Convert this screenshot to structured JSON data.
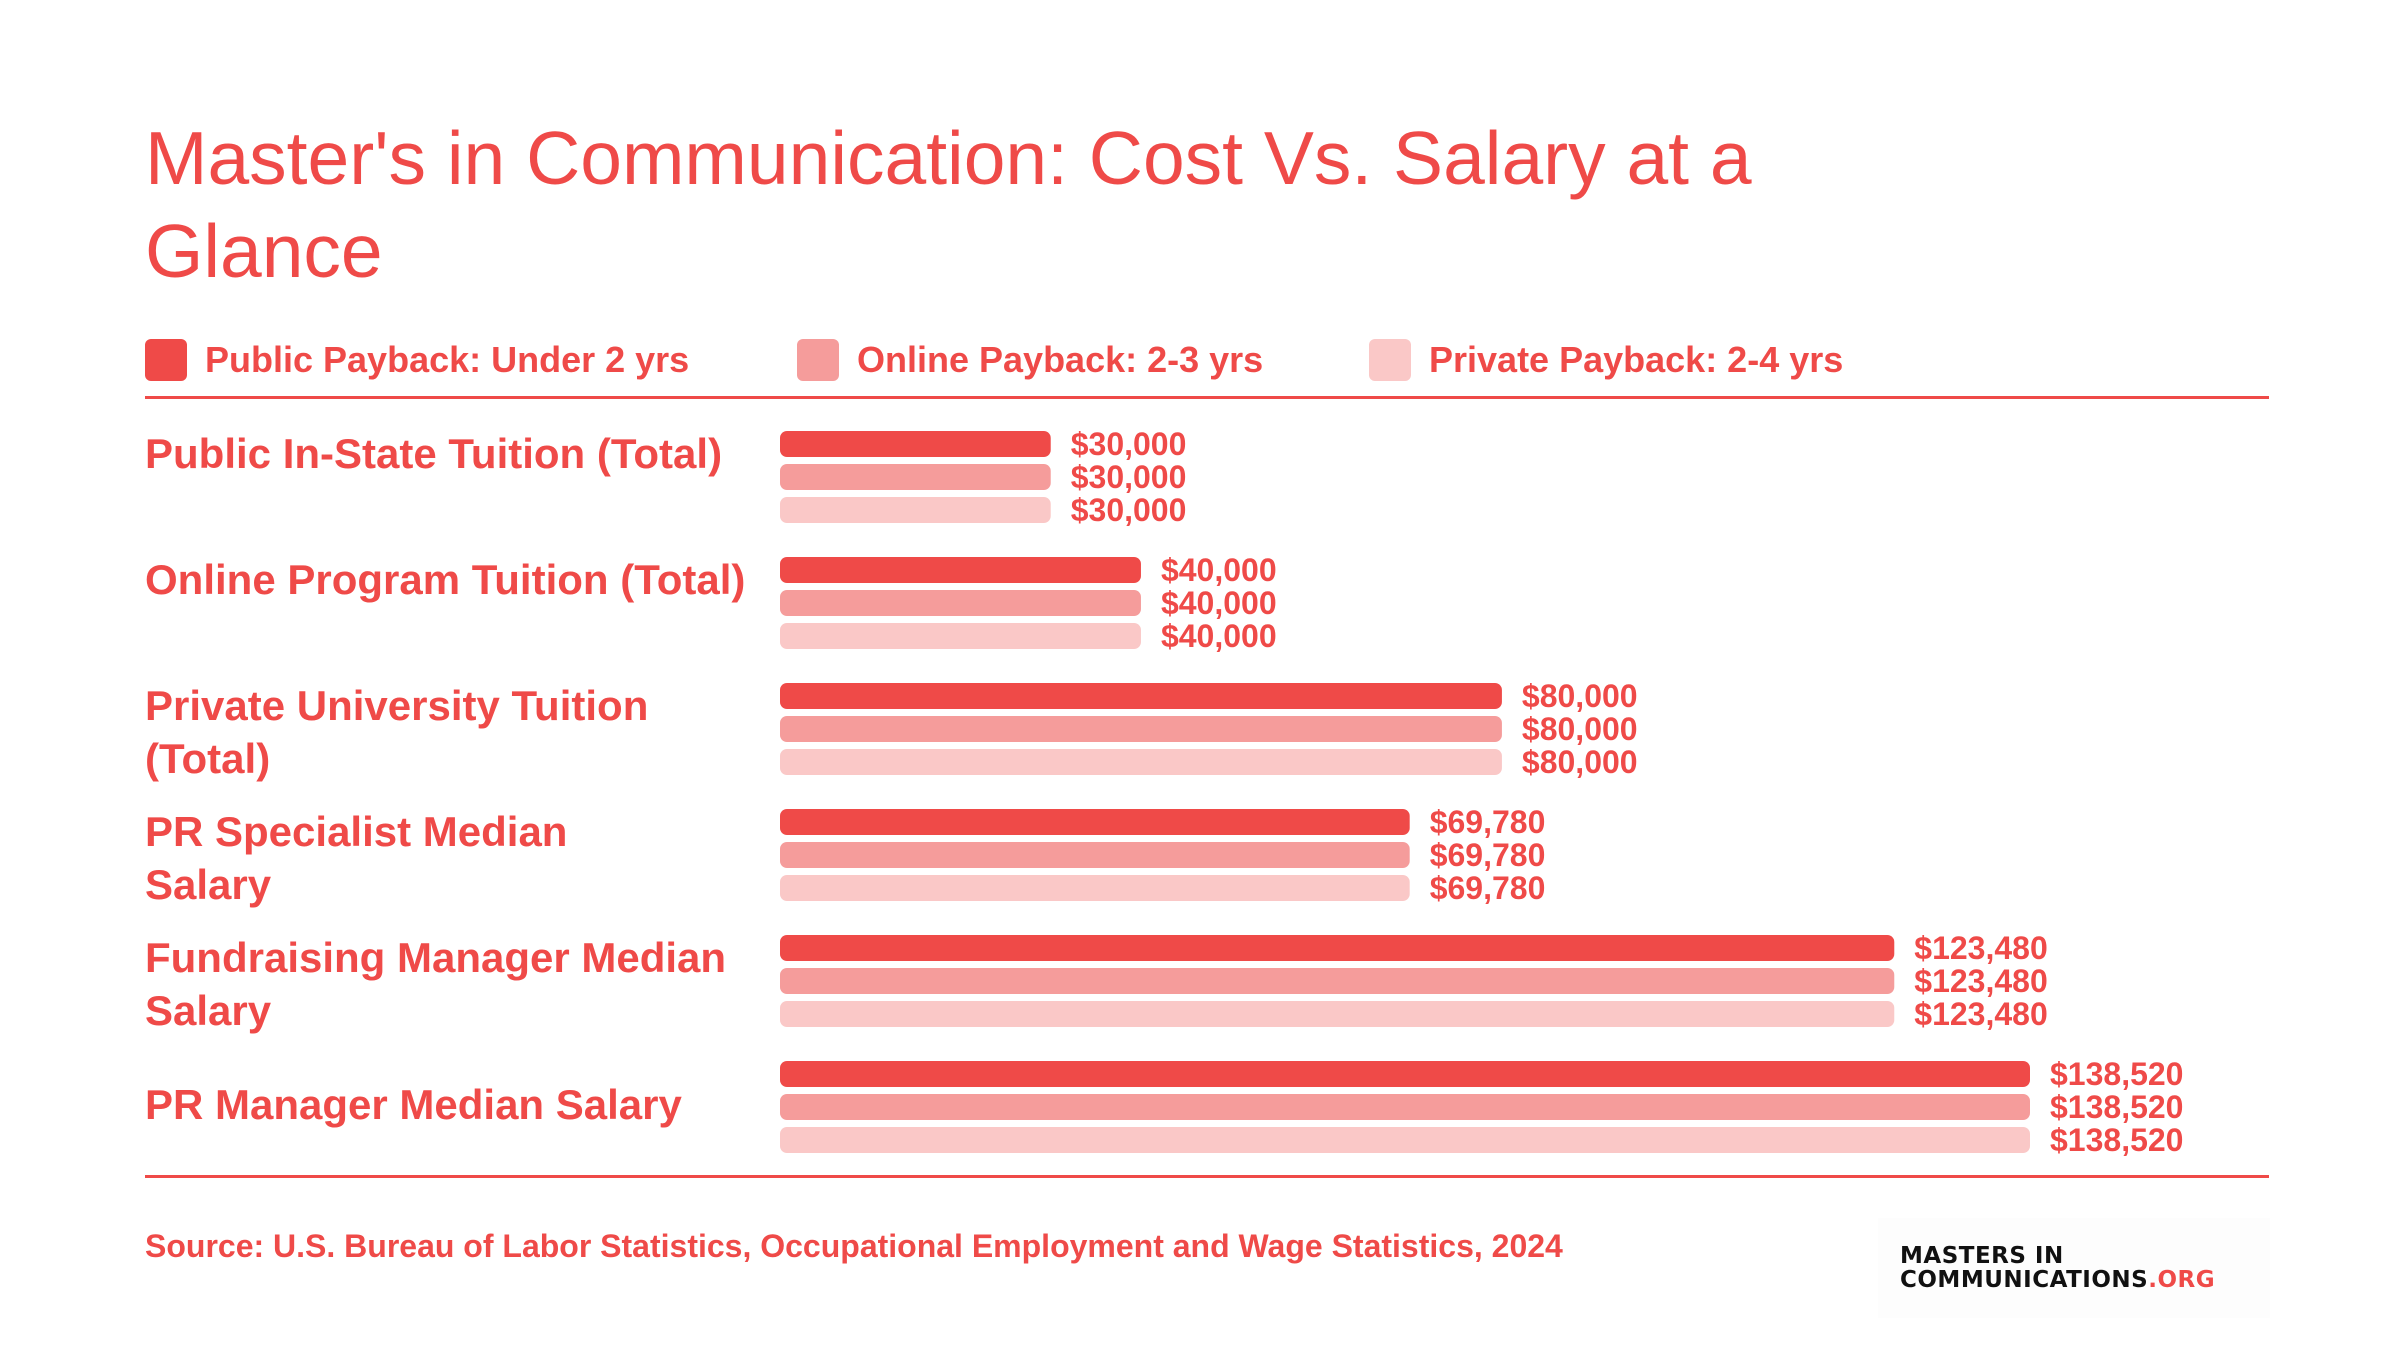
{
  "title": "Master's in Communication: Cost Vs. Salary at a Glance",
  "legend": [
    {
      "label": "Public Payback: Under 2 yrs",
      "color": "#ef4a48"
    },
    {
      "label": "Online Payback: 2-3 yrs",
      "color": "#f59c9b"
    },
    {
      "label": "Private Payback: 2-4 yrs",
      "color": "#fac8c7"
    }
  ],
  "source": "Source: U.S. Bureau of Labor Statistics, Occupational Employment and Wage Statistics, 2024",
  "logo": {
    "line1": "MASTERS IN",
    "line2": "COMMUNICATIONS",
    "suffix": ".ORG"
  },
  "chart_data": {
    "type": "bar",
    "orientation": "horizontal",
    "title": "Master's in Communication: Cost Vs. Salary at a Glance",
    "categories": [
      "Public In-State Tuition (Total)",
      "Online Program Tuition (Total)",
      "Private University Tuition (Total)",
      "PR Specialist Median Salary",
      "Fundraising Manager Median Salary",
      "PR Manager Median Salary"
    ],
    "series": [
      {
        "name": "Public Payback: Under 2 yrs",
        "color": "#ef4a48",
        "values": [
          30000,
          40000,
          80000,
          69780,
          123480,
          138520
        ],
        "labels": [
          "$30,000",
          "$40,000",
          "$80,000",
          "$69,780",
          "$123,480",
          "$138,520"
        ]
      },
      {
        "name": "Online Payback: 2-3 yrs",
        "color": "#f59c9b",
        "values": [
          30000,
          40000,
          80000,
          69780,
          123480,
          138520
        ],
        "labels": [
          "$30,000",
          "$40,000",
          "$80,000",
          "$69,780",
          "$123,480",
          "$138,520"
        ]
      },
      {
        "name": "Private Payback: 2-4 yrs",
        "color": "#fac8c7",
        "values": [
          30000,
          40000,
          80000,
          69780,
          123480,
          138520
        ],
        "labels": [
          "$30,000",
          "$40,000",
          "$80,000",
          "$69,780",
          "$123,480",
          "$138,520"
        ]
      }
    ],
    "xlim": [
      0,
      138520
    ],
    "grid": false,
    "legend_position": "top"
  }
}
